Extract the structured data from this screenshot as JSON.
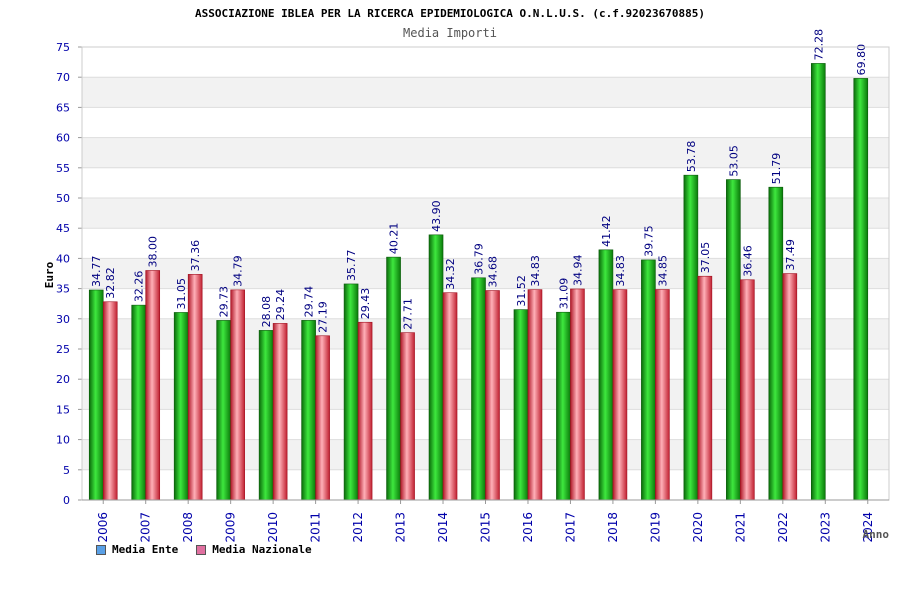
{
  "chart_data": {
    "type": "bar",
    "title": "ASSOCIAZIONE IBLEA PER LA RICERCA EPIDEMIOLOGICA O.N.L.U.S. (c.f.92023670885)",
    "subtitle": "Media Importi",
    "xlabel": "Anno",
    "ylabel": "Euro",
    "ylim": [
      0,
      75
    ],
    "ytick_step": 5,
    "grid": true,
    "legend_position": "bottom-left",
    "categories": [
      "2006",
      "2007",
      "2008",
      "2009",
      "2010",
      "2011",
      "2012",
      "2013",
      "2014",
      "2015",
      "2016",
      "2017",
      "2018",
      "2019",
      "2020",
      "2021",
      "2022",
      "2023",
      "2024"
    ],
    "series": [
      {
        "name": "Media Ente",
        "color": "#1fbf1f",
        "legend_color": "#5aa0e6",
        "values": [
          34.77,
          32.26,
          31.05,
          29.73,
          28.08,
          29.74,
          35.77,
          40.21,
          43.9,
          36.79,
          31.52,
          31.09,
          41.42,
          39.75,
          53.78,
          53.05,
          51.79,
          72.28,
          69.8
        ],
        "labels": [
          "34.77",
          "32.26",
          "31.05",
          "29.73",
          "28.08",
          "29.74",
          "35.77",
          "40.21",
          "43.90",
          "36.79",
          "31.52",
          "31.09",
          "41.42",
          "39.75",
          "53.78",
          "53.05",
          "51.79",
          "72.28",
          "69.80"
        ]
      },
      {
        "name": "Media Nazionale",
        "color": "#e84050",
        "legend_color": "#e070a0",
        "values": [
          32.82,
          38.0,
          37.36,
          34.79,
          29.24,
          27.19,
          29.43,
          27.71,
          34.32,
          34.68,
          34.83,
          34.94,
          34.83,
          34.85,
          37.05,
          36.46,
          37.49,
          null,
          null
        ],
        "labels": [
          "32.82",
          "38.00",
          "37.36",
          "34.79",
          "29.24",
          "27.19",
          "29.43",
          "27.71",
          "34.32",
          "34.68",
          "34.83",
          "34.94",
          "34.83",
          "34.85",
          "37.05",
          "36.46",
          "37.49",
          null,
          null
        ]
      }
    ]
  }
}
